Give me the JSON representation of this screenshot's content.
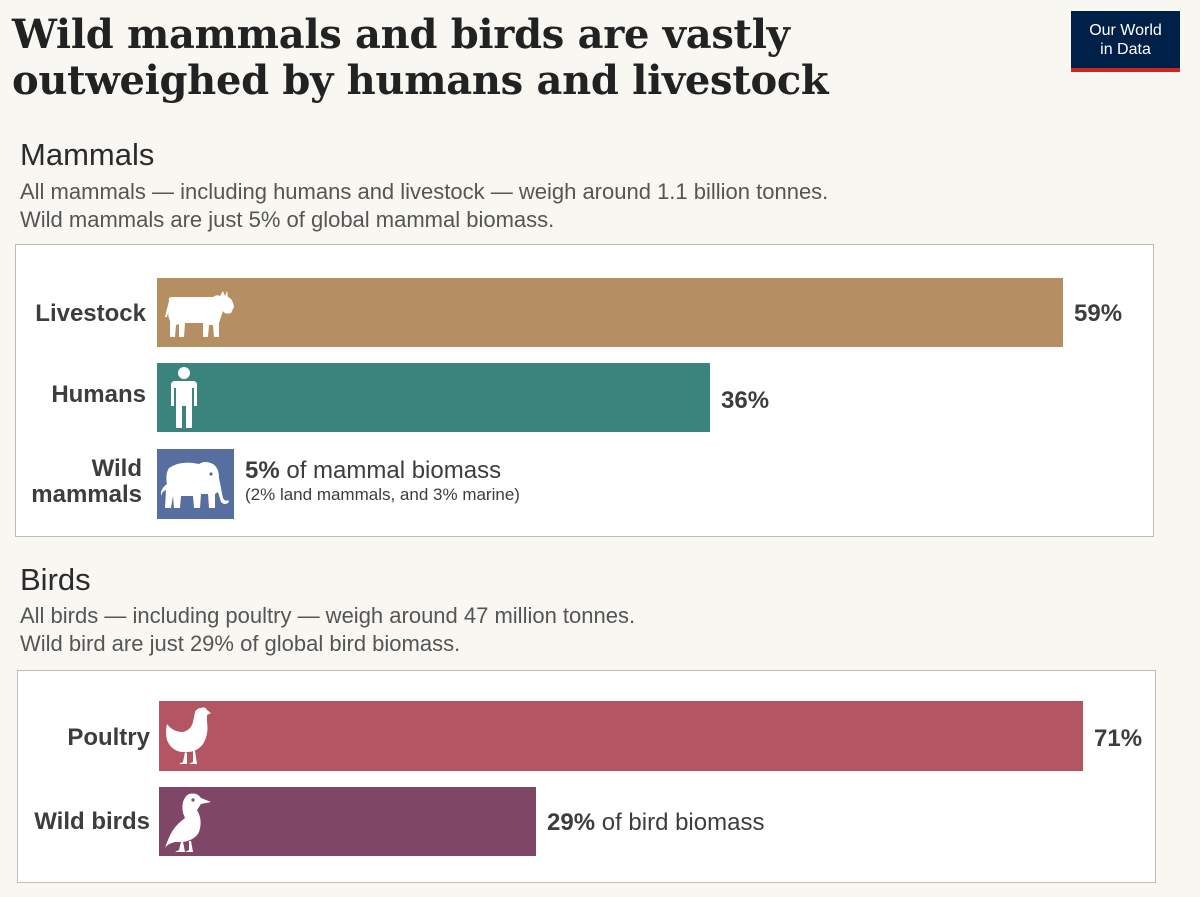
{
  "title": "Wild mammals and birds are vastly outweighed by humans and livestock",
  "logo": {
    "line1": "Our World",
    "line2": "in Data"
  },
  "colors": {
    "livestock": "#b58f62",
    "humans": "#3b837d",
    "wild_mammals": "#566ea0",
    "poultry": "#b35563",
    "wild_birds": "#804665",
    "logo_bg": "#002147",
    "logo_accent": "#ce261e"
  },
  "mammals": {
    "heading": "Mammals",
    "sub1": "All mammals — including humans and livestock — weigh around 1.1 billion tonnes.",
    "sub2": "Wild mammals are just 5% of global mammal biomass.",
    "rows": [
      {
        "label_line1": "Livestock",
        "label_line2": "",
        "value_text": "59%",
        "value_rest": "",
        "note": "",
        "icon": "cow-icon"
      },
      {
        "label_line1": "Humans",
        "label_line2": "",
        "value_text": "36%",
        "value_rest": "",
        "note": "",
        "icon": "person-icon"
      },
      {
        "label_line1": "Wild",
        "label_line2": "mammals",
        "value_text": "5%",
        "value_rest": " of mammal biomass",
        "note": "(2% land mammals, and 3% marine)",
        "icon": "elephant-icon"
      }
    ]
  },
  "birds": {
    "heading": "Birds",
    "sub1": "All birds — including poultry — weigh around 47 million tonnes.",
    "sub2": "Wild bird are just 29% of global bird biomass.",
    "rows": [
      {
        "label_line1": "Poultry",
        "label_line2": "",
        "value_text": "71%",
        "value_rest": "",
        "note": "",
        "icon": "chicken-icon"
      },
      {
        "label_line1": "Wild birds",
        "label_line2": "",
        "value_text": "29%",
        "value_rest": " of bird biomass",
        "note": "",
        "icon": "bird-icon"
      }
    ]
  },
  "chart_data": [
    {
      "type": "bar",
      "orientation": "horizontal",
      "title": "Mammals",
      "categories": [
        "Livestock",
        "Humans",
        "Wild mammals"
      ],
      "values": [
        59,
        36,
        5
      ],
      "unit": "%"
    },
    {
      "type": "bar",
      "orientation": "horizontal",
      "title": "Birds",
      "categories": [
        "Poultry",
        "Wild birds"
      ],
      "values": [
        71,
        29
      ],
      "unit": "%"
    }
  ]
}
